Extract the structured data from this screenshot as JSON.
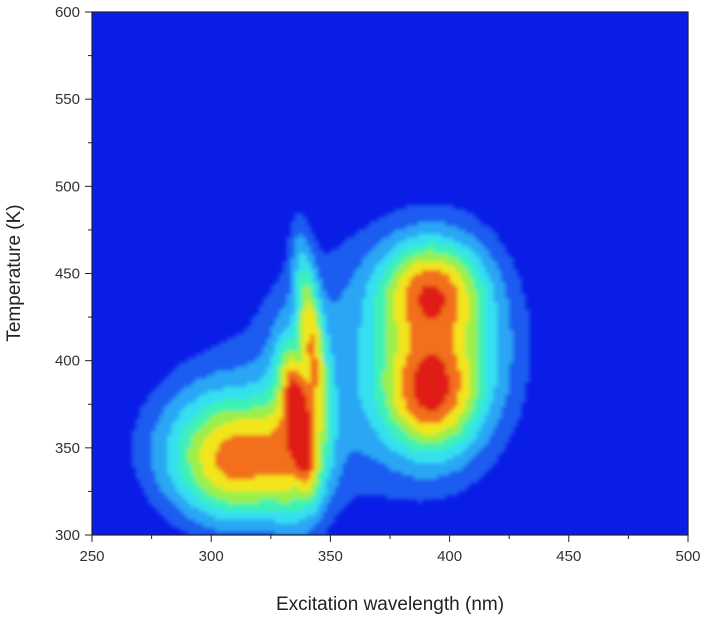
{
  "chart_data": {
    "type": "heatmap",
    "title": "",
    "xlabel": "Excitation wavelength (nm)",
    "ylabel": "Temperature (K)",
    "xlim": [
      250,
      500
    ],
    "ylim": [
      300,
      600
    ],
    "x_ticks": [
      "250",
      "300",
      "350",
      "400",
      "450",
      "500"
    ],
    "y_ticks": [
      "300",
      "350",
      "400",
      "450",
      "500",
      "550",
      "600"
    ],
    "colorscale": [
      "#0a1de6",
      "#1a5cf0",
      "#2aa6f5",
      "#35e0ef",
      "#3cf2b4",
      "#9af04a",
      "#f2e51c",
      "#f2701a",
      "#e01a14"
    ],
    "background_color": "#0a1de6",
    "features": [
      {
        "x": 313,
        "y": 343,
        "peak": 0.5
      },
      {
        "x": 337,
        "y": 365,
        "peak": 1.0
      },
      {
        "x": 342,
        "y": 420,
        "peak": 0.45
      },
      {
        "x": 392,
        "y": 382,
        "peak": 0.55
      },
      {
        "x": 392,
        "y": 440,
        "peak": 0.5
      },
      {
        "x": 400,
        "y": 410,
        "peak": 0.3
      }
    ]
  }
}
